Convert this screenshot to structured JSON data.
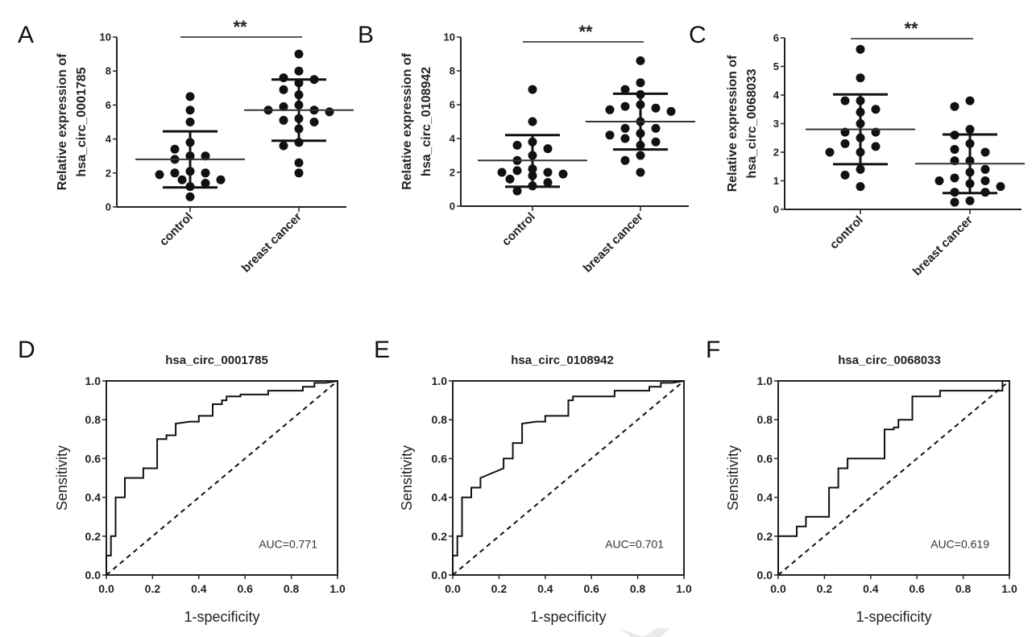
{
  "figure": {
    "watermark": "faint grey chevron watermark"
  },
  "chart_data": [
    {
      "panel": "A",
      "type": "scatter",
      "title": "",
      "ylabel": "Relative expression of hsa_circ_0001785",
      "ylabel_lines": [
        "Relative expression of",
        "hsa_circ_0001785"
      ],
      "xlabel": "",
      "categories": [
        "control",
        "breast cancer"
      ],
      "ylim": [
        0,
        10
      ],
      "yticks": [
        0,
        2,
        4,
        6,
        8,
        10
      ],
      "significance": "**",
      "groups": [
        {
          "name": "control",
          "values": [
            6.5,
            5.7,
            5.0,
            3.8,
            3.4,
            3.0,
            3.0,
            2.8,
            2.1,
            2.0,
            2.0,
            1.9,
            1.6,
            1.6,
            1.4,
            1.2,
            0.6
          ],
          "mean": 2.8,
          "sd_upper": 4.45,
          "sd_lower": 1.15
        },
        {
          "name": "breast cancer",
          "values": [
            9.0,
            8.0,
            7.6,
            7.5,
            7.3,
            6.9,
            6.6,
            6.0,
            5.9,
            5.7,
            5.7,
            5.6,
            5.1,
            5.2,
            5.0,
            4.6,
            3.8,
            3.6,
            2.6,
            2.0
          ],
          "mean": 5.7,
          "sd_upper": 7.5,
          "sd_lower": 3.9
        }
      ]
    },
    {
      "panel": "B",
      "type": "scatter",
      "title": "",
      "ylabel": "Relative expression of hsa_circ_0108942",
      "ylabel_lines": [
        "Relative expression of",
        "hsa_circ_0108942"
      ],
      "xlabel": "",
      "categories": [
        "control",
        "breast cancer"
      ],
      "ylim": [
        0,
        10
      ],
      "yticks": [
        0,
        2,
        4,
        6,
        8,
        10
      ],
      "significance": "**",
      "groups": [
        {
          "name": "control",
          "values": [
            6.9,
            5.0,
            3.8,
            3.6,
            3.4,
            3.0,
            2.7,
            2.2,
            2.1,
            2.0,
            2.0,
            1.9,
            1.8,
            1.6,
            1.4,
            1.2,
            0.9
          ],
          "mean": 2.7,
          "sd_upper": 4.2,
          "sd_lower": 1.15
        },
        {
          "name": "breast cancer",
          "values": [
            8.6,
            7.3,
            6.9,
            6.6,
            6.0,
            5.9,
            5.8,
            5.7,
            5.6,
            5.0,
            4.6,
            4.6,
            4.3,
            4.2,
            4.0,
            3.8,
            3.6,
            3.0,
            2.7,
            2.0
          ],
          "mean": 5.0,
          "sd_upper": 6.65,
          "sd_lower": 3.35
        }
      ]
    },
    {
      "panel": "C",
      "type": "scatter",
      "title": "",
      "ylabel": "Relative expression of hsa_circ_0068033",
      "ylabel_lines": [
        "Relative expression of",
        "hsa_circ_0068033"
      ],
      "xlabel": "",
      "categories": [
        "control",
        "breast cancer"
      ],
      "ylim": [
        0,
        6
      ],
      "yticks": [
        0,
        1,
        2,
        3,
        4,
        5,
        6
      ],
      "significance": "**",
      "groups": [
        {
          "name": "control",
          "values": [
            5.6,
            4.6,
            3.8,
            3.8,
            3.5,
            3.4,
            3.0,
            2.7,
            2.7,
            2.5,
            2.3,
            2.2,
            2.0,
            2.0,
            1.4,
            1.2,
            0.8
          ],
          "mean": 2.8,
          "sd_upper": 4.02,
          "sd_lower": 1.58
        },
        {
          "name": "breast cancer",
          "values": [
            3.8,
            3.6,
            2.8,
            2.6,
            2.3,
            2.1,
            2.0,
            1.7,
            1.7,
            1.4,
            1.3,
            1.1,
            1.0,
            1.0,
            0.9,
            0.8,
            0.6,
            0.6,
            0.3,
            0.25
          ],
          "mean": 1.6,
          "sd_upper": 2.62,
          "sd_lower": 0.57
        }
      ]
    },
    {
      "panel": "D",
      "type": "line",
      "title": "hsa_circ_0001785",
      "xlabel": "1-specificity",
      "ylabel": "Sensitivity",
      "xlim": [
        0,
        1
      ],
      "ylim": [
        0,
        1
      ],
      "xticks": [
        "0.0",
        "0.2",
        "0.4",
        "0.6",
        "0.8",
        "1.0"
      ],
      "yticks": [
        "0.0",
        "0.2",
        "0.4",
        "0.6",
        "0.8",
        "1.0"
      ],
      "annotation": "AUC=0.771",
      "auc": 0.771,
      "series": [
        {
          "name": "ROC",
          "x": [
            0,
            0,
            0.02,
            0.02,
            0.04,
            0.04,
            0.08,
            0.08,
            0.16,
            0.16,
            0.22,
            0.22,
            0.26,
            0.26,
            0.3,
            0.3,
            0.36,
            0.4,
            0.4,
            0.46,
            0.46,
            0.5,
            0.5,
            0.52,
            0.52,
            0.58,
            0.58,
            0.7,
            0.7,
            0.85,
            0.85,
            0.9,
            0.9,
            0.95,
            1.0
          ],
          "y": [
            0,
            0.1,
            0.1,
            0.2,
            0.2,
            0.4,
            0.4,
            0.5,
            0.5,
            0.55,
            0.55,
            0.7,
            0.7,
            0.72,
            0.72,
            0.78,
            0.79,
            0.79,
            0.82,
            0.82,
            0.88,
            0.88,
            0.9,
            0.9,
            0.92,
            0.92,
            0.93,
            0.93,
            0.95,
            0.95,
            0.97,
            0.97,
            0.99,
            0.99,
            1.0
          ]
        },
        {
          "name": "reference",
          "x": [
            0,
            1
          ],
          "y": [
            0,
            1
          ],
          "style": "dashed"
        }
      ]
    },
    {
      "panel": "E",
      "type": "line",
      "title": "hsa_circ_0108942",
      "xlabel": "1-specificity",
      "ylabel": "Sensitivity",
      "xlim": [
        0,
        1
      ],
      "ylim": [
        0,
        1
      ],
      "xticks": [
        "0.0",
        "0.2",
        "0.4",
        "0.6",
        "0.8",
        "1.0"
      ],
      "yticks": [
        "0.0",
        "0.2",
        "0.4",
        "0.6",
        "0.8",
        "1.0"
      ],
      "annotation": "AUC=0.701",
      "auc": 0.701,
      "series": [
        {
          "name": "ROC",
          "x": [
            0,
            0,
            0.02,
            0.02,
            0.04,
            0.04,
            0.08,
            0.08,
            0.12,
            0.12,
            0.22,
            0.22,
            0.26,
            0.26,
            0.3,
            0.3,
            0.36,
            0.4,
            0.4,
            0.5,
            0.5,
            0.52,
            0.52,
            0.7,
            0.7,
            0.85,
            0.85,
            0.9,
            0.9,
            0.95,
            1.0
          ],
          "y": [
            0,
            0.1,
            0.1,
            0.2,
            0.2,
            0.4,
            0.4,
            0.45,
            0.45,
            0.5,
            0.55,
            0.6,
            0.6,
            0.68,
            0.68,
            0.78,
            0.79,
            0.79,
            0.82,
            0.82,
            0.9,
            0.9,
            0.92,
            0.92,
            0.95,
            0.95,
            0.97,
            0.97,
            0.99,
            0.99,
            1.0
          ]
        },
        {
          "name": "reference",
          "x": [
            0,
            1
          ],
          "y": [
            0,
            1
          ],
          "style": "dashed"
        }
      ]
    },
    {
      "panel": "F",
      "type": "line",
      "title": "hsa_circ_0068033",
      "xlabel": "1-specificity",
      "ylabel": "Sensitivity",
      "xlim": [
        0,
        1
      ],
      "ylim": [
        0,
        1
      ],
      "xticks": [
        "0.0",
        "0.2",
        "0.4",
        "0.6",
        "0.8",
        "1.0"
      ],
      "yticks": [
        "0.0",
        "0.2",
        "0.4",
        "0.6",
        "0.8",
        "1.0"
      ],
      "annotation": "AUC=0.619",
      "auc": 0.619,
      "series": [
        {
          "name": "ROC",
          "x": [
            0,
            0,
            0.08,
            0.08,
            0.12,
            0.12,
            0.22,
            0.22,
            0.26,
            0.26,
            0.3,
            0.3,
            0.46,
            0.46,
            0.5,
            0.5,
            0.52,
            0.52,
            0.58,
            0.58,
            0.7,
            0.7,
            0.95,
            0.95,
            0.97,
            0.97,
            1.0
          ],
          "y": [
            0,
            0.2,
            0.2,
            0.25,
            0.25,
            0.3,
            0.3,
            0.45,
            0.45,
            0.55,
            0.55,
            0.6,
            0.6,
            0.75,
            0.75,
            0.76,
            0.76,
            0.8,
            0.8,
            0.92,
            0.92,
            0.95,
            0.95,
            0.95,
            0.95,
            1.0,
            1.0
          ]
        },
        {
          "name": "reference",
          "x": [
            0,
            1
          ],
          "y": [
            0,
            1
          ],
          "style": "dashed"
        }
      ]
    }
  ]
}
